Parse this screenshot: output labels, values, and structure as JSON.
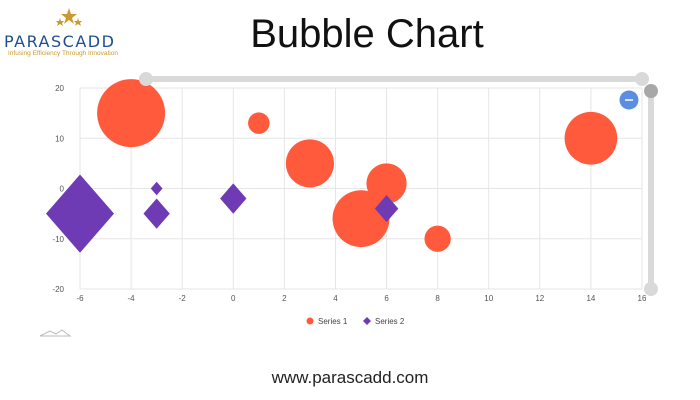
{
  "logo": {
    "wordmark": "PARASCADD",
    "tagline": "Infusing Efficiency Through Innovation"
  },
  "title": "Bubble Chart",
  "footer": {
    "url": "www.parascadd.com"
  },
  "zoom_button_icon": "minus-icon",
  "colors": {
    "series1": "#ff5a3c",
    "series2": "#6f3bb5",
    "zoom_button": "#5b8de0",
    "scrollbar": "#d9d9d9"
  },
  "chart_data": {
    "type": "scatter",
    "subtype": "bubble",
    "title": "",
    "xlabel": "",
    "ylabel": "",
    "xlim": [
      -6,
      16
    ],
    "ylim": [
      -20,
      20
    ],
    "x_ticks": [
      -6,
      -4,
      -2,
      0,
      2,
      4,
      6,
      8,
      10,
      12,
      14,
      16
    ],
    "y_ticks": [
      20,
      10,
      0,
      -10,
      -20
    ],
    "grid": true,
    "legend": "bottom-center",
    "series": [
      {
        "name": "Series 1",
        "marker": "circle",
        "color": "#ff5a3c",
        "points": [
          {
            "x": -4,
            "y": 15,
            "size": 10
          },
          {
            "x": 1,
            "y": 13,
            "size": 1
          },
          {
            "x": 3,
            "y": 5,
            "size": 5
          },
          {
            "x": 5,
            "y": -6,
            "size": 7
          },
          {
            "x": 6,
            "y": 1,
            "size": 3.5
          },
          {
            "x": 8,
            "y": -10,
            "size": 1.5
          },
          {
            "x": 14,
            "y": 10,
            "size": 6
          }
        ]
      },
      {
        "name": "Series 2",
        "marker": "diamond",
        "color": "#6f3bb5",
        "points": [
          {
            "x": -6,
            "y": -5,
            "size": 10
          },
          {
            "x": -3,
            "y": 0,
            "size": 0.3
          },
          {
            "x": -3,
            "y": -5,
            "size": 1.5
          },
          {
            "x": 0,
            "y": -2,
            "size": 1.5
          },
          {
            "x": 6,
            "y": -4,
            "size": 1.2
          }
        ]
      }
    ]
  }
}
